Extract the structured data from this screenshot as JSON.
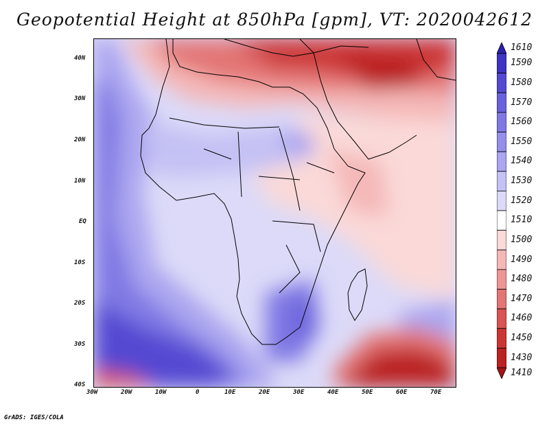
{
  "title": "Geopotential Height at 850hPa [gpm], VT: 2020042612",
  "credit": "GrADS: IGES/COLA",
  "lat_labels": [
    "40N",
    "30N",
    "20N",
    "10N",
    "EQ",
    "10S",
    "20S",
    "30S",
    "40S"
  ],
  "lon_labels": [
    "30W",
    "20W",
    "10W",
    "0",
    "10E",
    "20E",
    "30E",
    "40E",
    "50E",
    "60E",
    "70E"
  ],
  "colorbar": {
    "labels": [
      "1610",
      "1590",
      "1580",
      "1570",
      "1560",
      "1550",
      "1540",
      "1530",
      "1520",
      "1510",
      "1500",
      "1490",
      "1480",
      "1470",
      "1460",
      "1450",
      "1430",
      "1410"
    ],
    "colors": [
      "#2b1fb0",
      "#3e33c4",
      "#5449d2",
      "#6a62dc",
      "#8079e4",
      "#968fe9",
      "#aba6ef",
      "#c4c1f4",
      "#dcdaf8",
      "#ffffff",
      "#fad9d8",
      "#f4b8b7",
      "#ec9796",
      "#e37574",
      "#d95453",
      "#cc3534",
      "#bb2222",
      "#a41515"
    ]
  }
}
